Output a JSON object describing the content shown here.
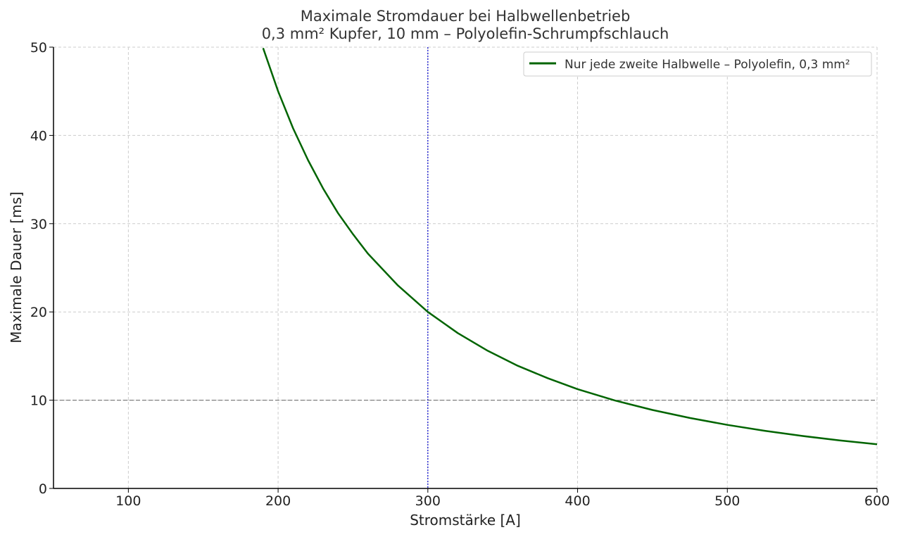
{
  "chart_data": {
    "type": "line",
    "title": "Maximale Stromdauer bei Halbwellenbetrieb",
    "subtitle": "0,3 mm² Kupfer, 10 mm – Polyolefin-Schrumpfschlauch",
    "xlabel": "Stromstärke [A]",
    "ylabel": "Maximale Dauer [ms]",
    "xlim": [
      50,
      600
    ],
    "ylim": [
      0,
      50
    ],
    "xticks": [
      100,
      200,
      300,
      400,
      500,
      600
    ],
    "yticks": [
      0,
      10,
      20,
      30,
      40,
      50
    ],
    "grid": true,
    "legend_position": "top-right",
    "series": [
      {
        "name": "Nur jede zweite Halbwelle – Polyolefin, 0,3 mm²",
        "color": "#006400",
        "x": [
          190,
          200,
          210,
          220,
          230,
          240,
          250,
          260,
          280,
          300,
          320,
          340,
          360,
          380,
          400,
          425,
          450,
          475,
          500,
          525,
          550,
          575,
          600
        ],
        "y": [
          49.9,
          45.0,
          40.8,
          37.2,
          34.0,
          31.2,
          28.8,
          26.6,
          23.0,
          20.0,
          17.6,
          15.6,
          13.9,
          12.5,
          11.25,
          9.96,
          8.89,
          7.98,
          7.2,
          6.53,
          5.95,
          5.44,
          5.0
        ]
      }
    ],
    "reference_lines": [
      {
        "orientation": "horizontal",
        "value": 10,
        "color": "#808080",
        "style": "dashed"
      },
      {
        "orientation": "vertical",
        "value": 300,
        "color": "#0000cd",
        "style": "dotted"
      }
    ]
  }
}
